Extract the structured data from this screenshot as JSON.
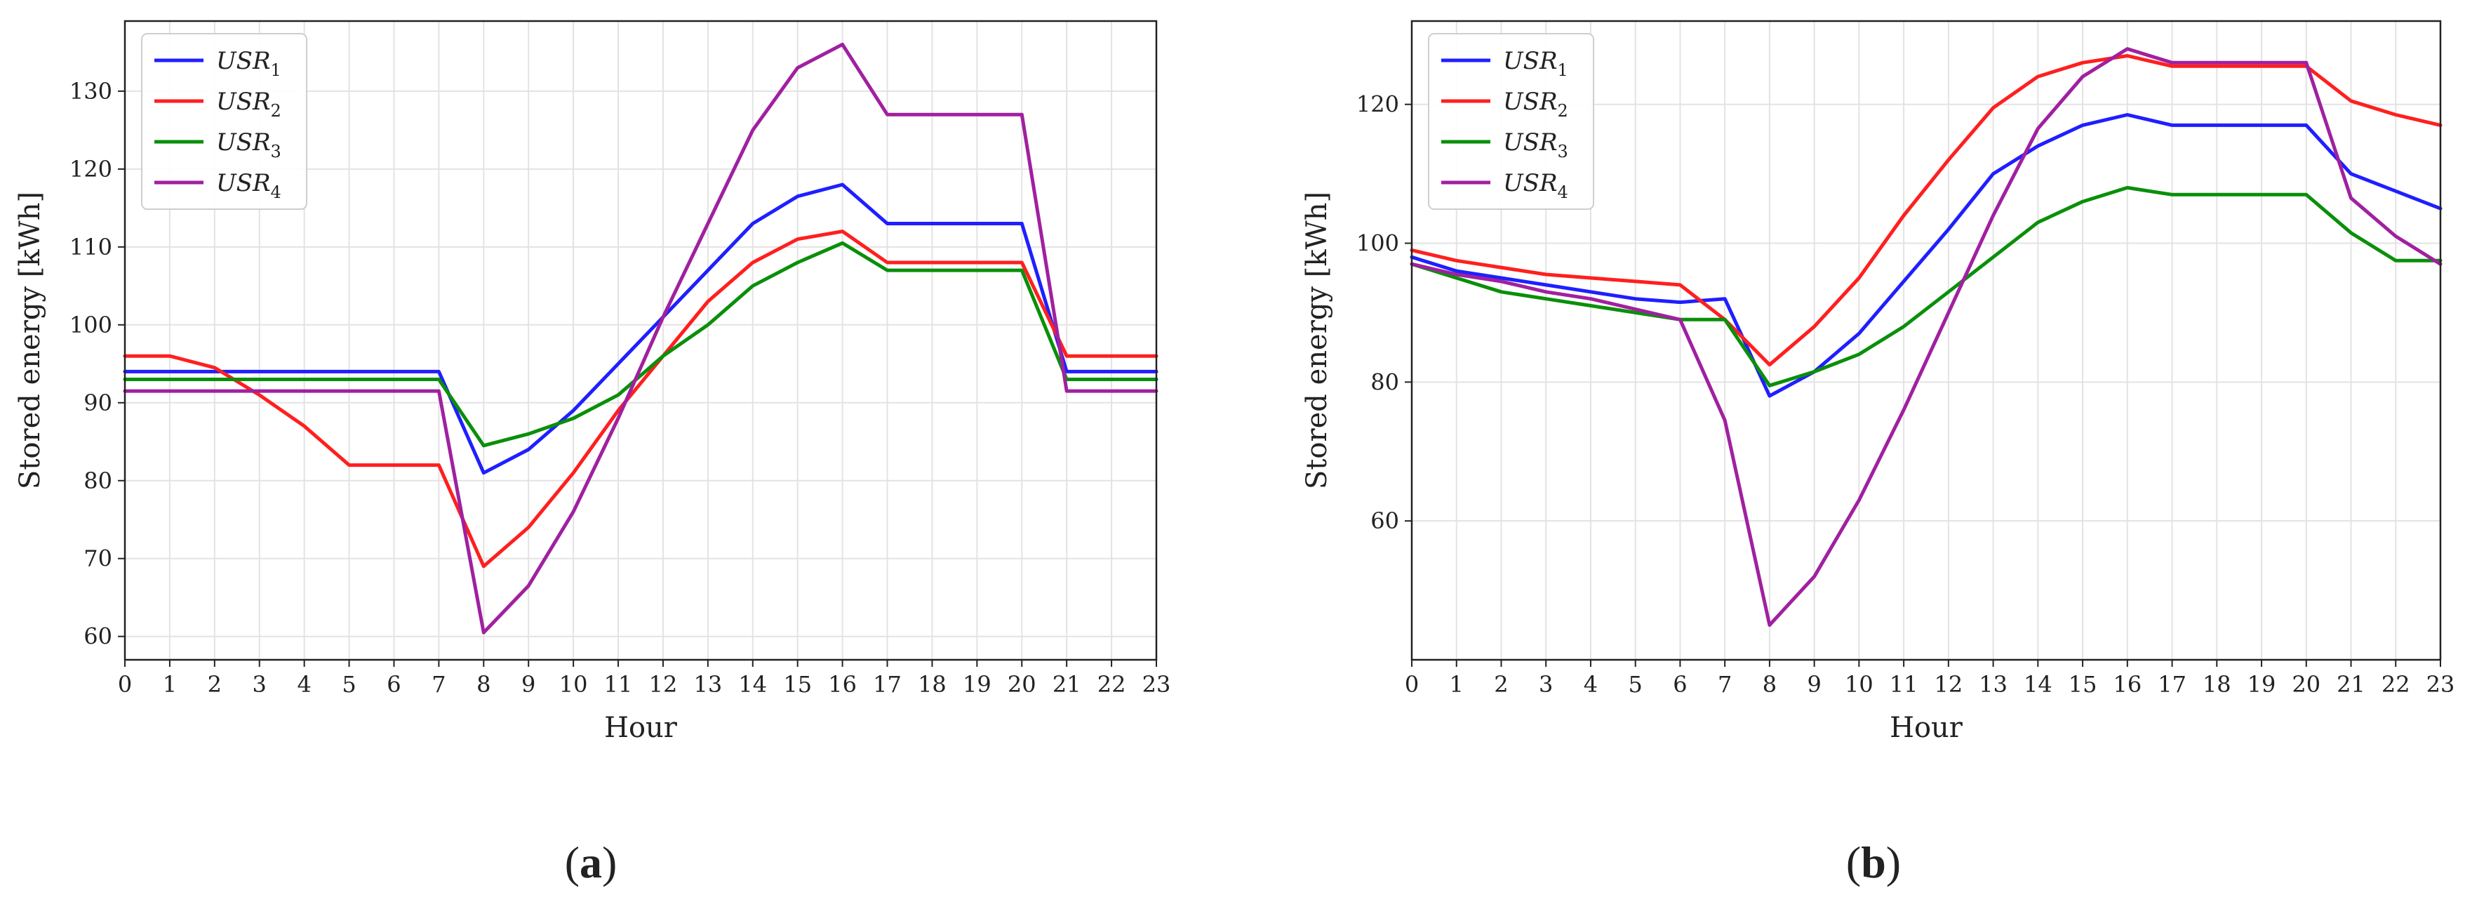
{
  "chart_data": [
    {
      "type": "line",
      "panel": "(a)",
      "caption_letter": "a",
      "title": "",
      "xlabel": "Hour",
      "ylabel": "Stored energy [kWh]",
      "xlim": [
        0,
        23
      ],
      "ylim": [
        57,
        139
      ],
      "xticks": [
        0,
        1,
        2,
        3,
        4,
        5,
        6,
        7,
        8,
        9,
        10,
        11,
        12,
        13,
        14,
        15,
        16,
        17,
        18,
        19,
        20,
        21,
        22,
        23
      ],
      "yticks": [
        60,
        70,
        80,
        90,
        100,
        110,
        120,
        130
      ],
      "grid": true,
      "legend": "top-left",
      "x": [
        0,
        1,
        2,
        3,
        4,
        5,
        6,
        7,
        8,
        9,
        10,
        11,
        12,
        13,
        14,
        15,
        16,
        17,
        18,
        19,
        20,
        21,
        22,
        23
      ],
      "series": [
        {
          "name": "USR",
          "subscript": "1",
          "color": "#1f1fff",
          "values": [
            94,
            94,
            94,
            94,
            94,
            94,
            94,
            94,
            81,
            84,
            89,
            95,
            101,
            107,
            113,
            116.5,
            118,
            113,
            113,
            113,
            113,
            94,
            94,
            94
          ]
        },
        {
          "name": "USR",
          "subscript": "2",
          "color": "#ff1f1f",
          "values": [
            96,
            96,
            94.5,
            91,
            87,
            82,
            82,
            82,
            69,
            74,
            81,
            89,
            96,
            103,
            108,
            111,
            112,
            108,
            108,
            108,
            108,
            96,
            96,
            96
          ]
        },
        {
          "name": "USR",
          "subscript": "3",
          "color": "#0a8f0a",
          "values": [
            93,
            93,
            93,
            93,
            93,
            93,
            93,
            93,
            84.5,
            86,
            88,
            91,
            96,
            100,
            105,
            108,
            110.5,
            107,
            107,
            107,
            107,
            93,
            93,
            93
          ]
        },
        {
          "name": "USR",
          "subscript": "4",
          "color": "#a020a0",
          "values": [
            91.5,
            91.5,
            91.5,
            91.5,
            91.5,
            91.5,
            91.5,
            91.5,
            60.5,
            66.5,
            76,
            88,
            101,
            113,
            125,
            133,
            136,
            127,
            127,
            127,
            127,
            91.5,
            91.5,
            91.5
          ]
        }
      ]
    },
    {
      "type": "line",
      "panel": "(b)",
      "caption_letter": "b",
      "title": "",
      "xlabel": "Hour",
      "ylabel": "Stored energy [kWh]",
      "xlim": [
        0,
        23
      ],
      "ylim": [
        40,
        132
      ],
      "xticks": [
        0,
        1,
        2,
        3,
        4,
        5,
        6,
        7,
        8,
        9,
        10,
        11,
        12,
        13,
        14,
        15,
        16,
        17,
        18,
        19,
        20,
        21,
        22,
        23
      ],
      "yticks": [
        60,
        80,
        100,
        120
      ],
      "grid": true,
      "legend": "top-left",
      "x": [
        0,
        1,
        2,
        3,
        4,
        5,
        6,
        7,
        8,
        9,
        10,
        11,
        12,
        13,
        14,
        15,
        16,
        17,
        18,
        19,
        20,
        21,
        22,
        23
      ],
      "series": [
        {
          "name": "USR",
          "subscript": "1",
          "color": "#1f1fff",
          "values": [
            98,
            96,
            95,
            94,
            93,
            92,
            91.5,
            92,
            78,
            81.5,
            87,
            94.5,
            102,
            110,
            114,
            117,
            118.5,
            117,
            117,
            117,
            117,
            110,
            107.5,
            105
          ]
        },
        {
          "name": "USR",
          "subscript": "2",
          "color": "#ff1f1f",
          "values": [
            99,
            97.5,
            96.5,
            95.5,
            95,
            94.5,
            94,
            89,
            82.5,
            88,
            95,
            104,
            112,
            119.5,
            124,
            126,
            127,
            125.5,
            125.5,
            125.5,
            125.5,
            120.5,
            118.5,
            117
          ]
        },
        {
          "name": "USR",
          "subscript": "3",
          "color": "#0a8f0a",
          "values": [
            97,
            95,
            93,
            92,
            91,
            90,
            89,
            89,
            79.5,
            81.5,
            84,
            88,
            93,
            98,
            103,
            106,
            108,
            107,
            107,
            107,
            107,
            101.5,
            97.5,
            97.5
          ]
        },
        {
          "name": "USR",
          "subscript": "4",
          "color": "#a020a0",
          "values": [
            97,
            95.5,
            94.5,
            93,
            92,
            90.5,
            89,
            74.5,
            45,
            52,
            63,
            76,
            90,
            104,
            116.5,
            124,
            128,
            126,
            126,
            126,
            126,
            106.5,
            101,
            97
          ]
        }
      ]
    }
  ]
}
